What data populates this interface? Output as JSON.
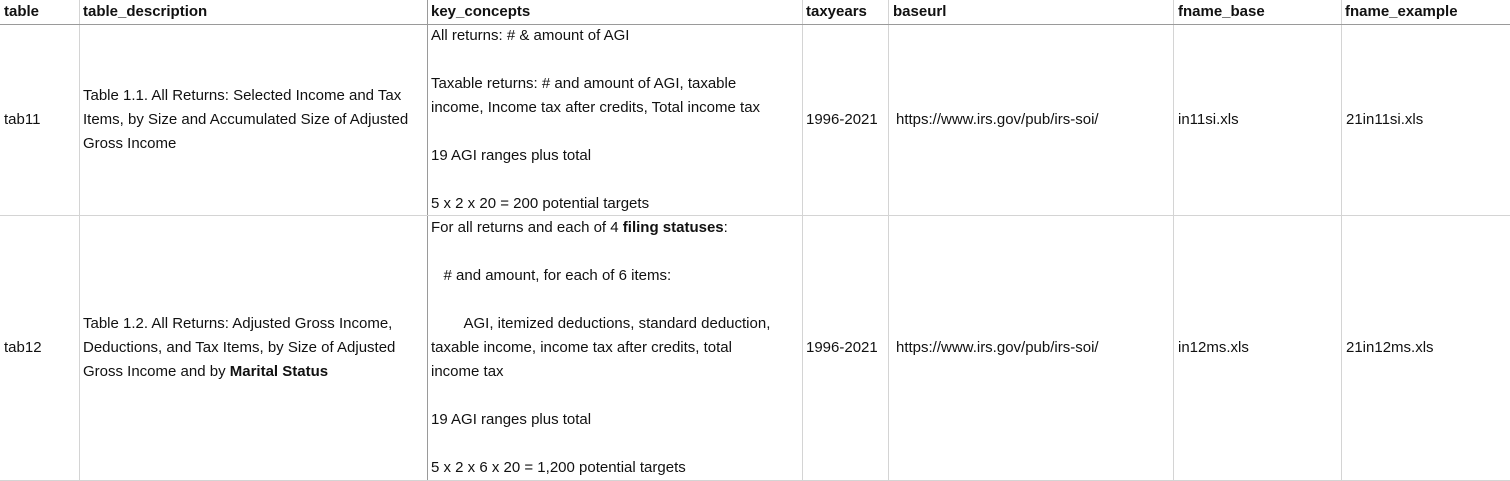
{
  "headers": {
    "table": "table",
    "table_description": "table_description",
    "key_concepts": "key_concepts",
    "taxyears": "taxyears",
    "baseurl": "baseurl",
    "fname_base": "fname_base",
    "fname_example": "fname_example"
  },
  "rows": [
    {
      "table": "tab11",
      "desc_lines": [
        "Table 1.1.  All Returns: Selected Income and Tax",
        "Items, by Size and Accumulated Size of Adjusted",
        "Gross Income"
      ],
      "kc_lines": [
        "All returns: # & amount of AGI",
        "",
        "Taxable returns: # and amount of AGI, taxable",
        "income, Income tax after credits, Total income tax",
        "",
        "19 AGI ranges plus total",
        "",
        "5 x 2 x 20 = 200 potential targets"
      ],
      "taxyears": "1996-2021",
      "baseurl": "https://www.irs.gov/pub/irs-soi/",
      "fname_base": "in11si.xls",
      "fname_example": "21in11si.xls"
    },
    {
      "table": "tab12",
      "desc_line1": "Table 1.2.  All Returns: Adjusted Gross Income,",
      "desc_line2": "Deductions, and Tax Items, by Size of Adjusted",
      "desc_line3_prefix": "Gross Income and by ",
      "desc_line3_bold": "Marital Status",
      "kc_line1_prefix": "For all returns and each of 4 ",
      "kc_line1_bold": "filing statuses",
      "kc_line1_suffix": ":",
      "kc_line3": "   # and amount, for each of 6 items:",
      "kc_line5": "        AGI, itemized deductions, standard deduction,",
      "kc_line6": "taxable income, income tax after credits, total",
      "kc_line7": "income tax",
      "kc_line9": "19 AGI ranges plus total",
      "kc_line11": "5 x 2 x 6 x 20 = 1,200 potential targets",
      "taxyears": "1996-2021",
      "baseurl": "https://www.irs.gov/pub/irs-soi/",
      "fname_base": "in12ms.xls",
      "fname_example": "21in12ms.xls"
    }
  ]
}
